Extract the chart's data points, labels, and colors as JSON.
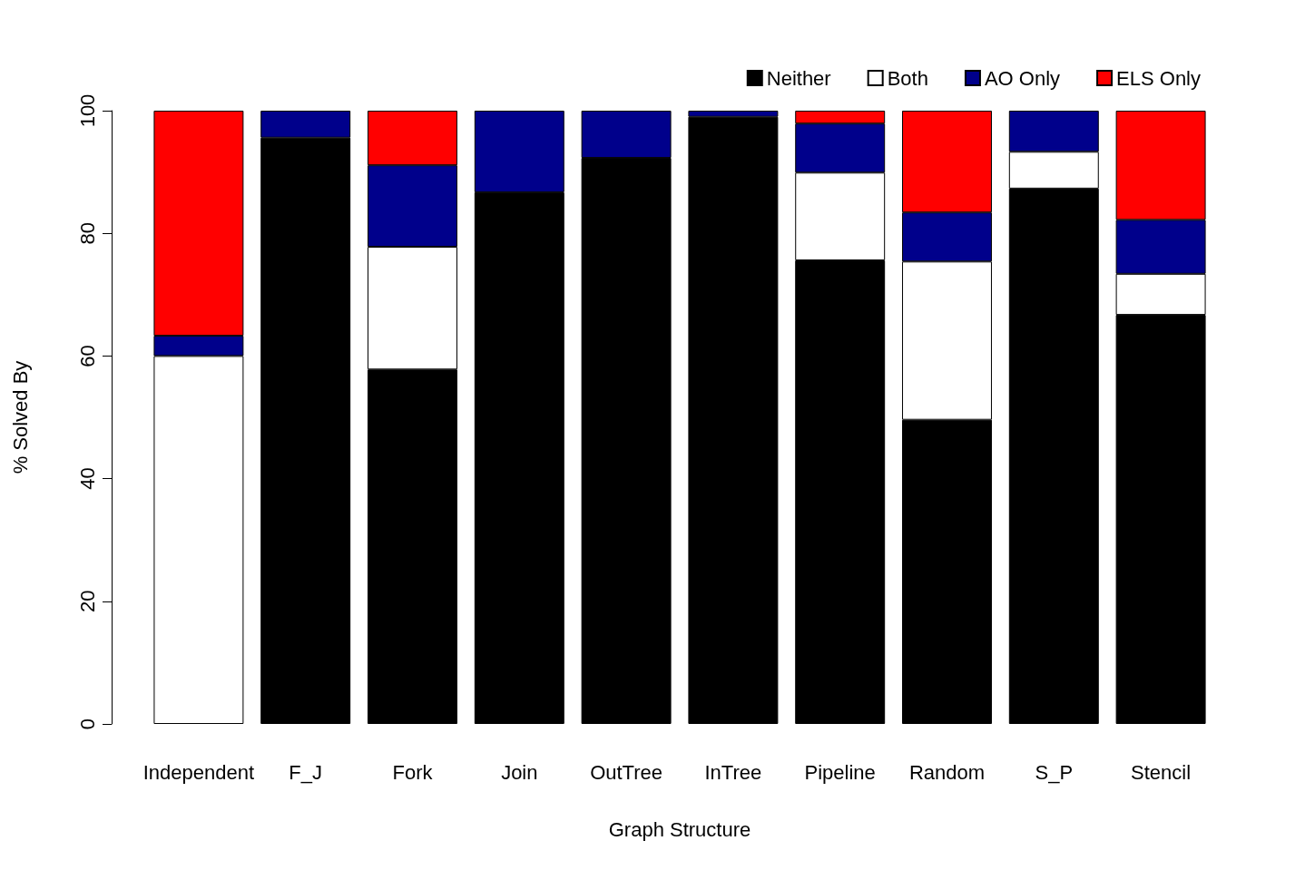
{
  "chart_data": {
    "type": "bar",
    "stacked": true,
    "xlabel": "Graph Structure",
    "ylabel": "% Solved By",
    "categories": [
      "Independent",
      "F_J",
      "Fork",
      "Join",
      "OutTree",
      "InTree",
      "Pipeline",
      "Random",
      "S_P",
      "Stencil"
    ],
    "series": [
      {
        "name": "Neither",
        "color": "#000000",
        "values": [
          0,
          95.6,
          57.8,
          86.7,
          92.3,
          99.0,
          75.6,
          49.6,
          87.3,
          66.7
        ]
      },
      {
        "name": "Both",
        "color": "#ffffff",
        "values": [
          60,
          0,
          20,
          0,
          0,
          0,
          14.3,
          25.8,
          6.0,
          6.7
        ]
      },
      {
        "name": "AO Only",
        "color": "#00008b",
        "values": [
          3.3,
          4.4,
          13.3,
          13.3,
          7.7,
          1.0,
          8.0,
          8.0,
          6.7,
          8.8
        ]
      },
      {
        "name": "ELS Only",
        "color": "#ff0000",
        "values": [
          36.7,
          0,
          8.9,
          0,
          0,
          0,
          2.1,
          16.6,
          0,
          17.8
        ]
      }
    ],
    "ylim": [
      0,
      100
    ],
    "yticks": [
      0,
      20,
      40,
      60,
      80,
      100
    ],
    "legend": "top right"
  }
}
